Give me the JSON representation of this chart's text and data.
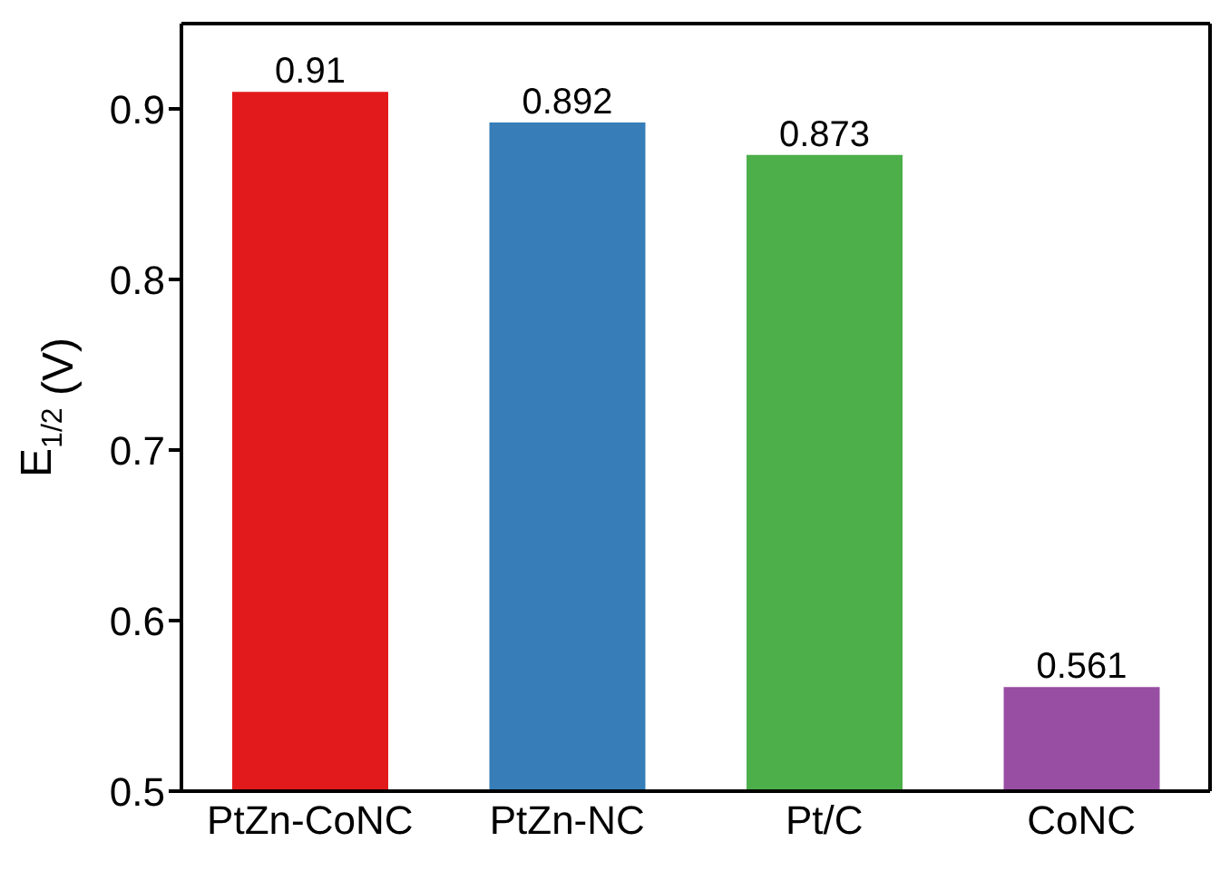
{
  "chart_data": {
    "type": "bar",
    "ylabel": "E$_{1/2}$ (V)",
    "categories": [
      "PtZn-CoNC",
      "PtZn-NC",
      "Pt/C",
      "CoNC"
    ],
    "values": [
      0.91,
      0.892,
      0.873,
      0.561
    ],
    "colors": [
      "#e31a1c",
      "#377eb8",
      "#4daf4a",
      "#984ea3"
    ],
    "ylim": [
      0.5,
      0.95
    ],
    "yticks": [
      0.5,
      0.6,
      0.7,
      0.8,
      0.9
    ],
    "data_labels": true,
    "grid": false
  }
}
